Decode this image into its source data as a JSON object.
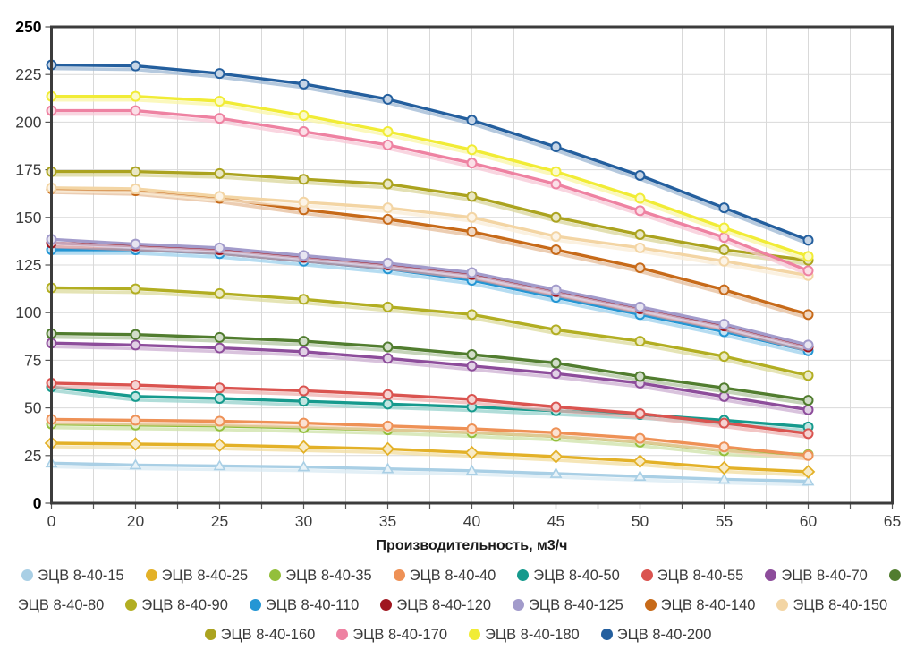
{
  "page": {
    "background": "#ffffff"
  },
  "chart_data": {
    "type": "line",
    "title": "",
    "xlabel": "Производительность, м3/ч",
    "ylabel": "",
    "x_tick_labels": [
      "0",
      "20",
      "25",
      "30",
      "35",
      "40",
      "45",
      "50",
      "55",
      "60",
      "65"
    ],
    "categories": [
      0,
      20,
      25,
      30,
      35,
      40,
      45,
      50,
      55,
      60
    ],
    "y_ticks": [
      0,
      25,
      50,
      75,
      100,
      125,
      150,
      175,
      200,
      225,
      250
    ],
    "ylim": [
      0,
      250
    ],
    "grid": true,
    "legend_position": "bottom",
    "axis_color": "#3c3c3c",
    "grid_color": "#d9d9d9",
    "tick_color": "#555555",
    "tick_label_color": "#3d3d3d",
    "series": [
      {
        "name": "ЭЦВ 8-40-15",
        "color": "#a9cfe5",
        "marker": "triangle",
        "values": [
          21,
          20,
          19.5,
          19,
          18,
          17,
          15.5,
          14,
          12.5,
          11.5
        ]
      },
      {
        "name": "ЭЦВ 8-40-25",
        "color": "#e3b128",
        "marker": "diamond",
        "values": [
          31.5,
          31,
          30.5,
          29.5,
          28.5,
          26.5,
          24.5,
          22,
          18.5,
          16.5
        ]
      },
      {
        "name": "ЭЦВ 8-40-35",
        "color": "#93bf3b",
        "marker": "circle",
        "values": [
          41.5,
          41,
          40.5,
          39.5,
          38.5,
          37,
          35,
          32,
          27.5,
          25.5
        ]
      },
      {
        "name": "ЭЦВ 8-40-40",
        "color": "#ee9156",
        "marker": "circle",
        "values": [
          44,
          43.5,
          43,
          42,
          40.5,
          39,
          37,
          34,
          29.5,
          25
        ]
      },
      {
        "name": "ЭЦВ 8-40-50",
        "color": "#169a8d",
        "marker": "circle",
        "values": [
          61,
          56,
          55,
          53.5,
          52,
          50.5,
          48.5,
          46.5,
          43.5,
          40
        ]
      },
      {
        "name": "ЭЦВ 8-40-55",
        "color": "#da5450",
        "marker": "circle",
        "values": [
          63,
          62,
          60.5,
          59,
          57,
          54.5,
          50.5,
          47,
          42,
          36.5
        ]
      },
      {
        "name": "ЭЦВ 8-40-70",
        "color": "#8d4d9b",
        "marker": "circle",
        "values": [
          84,
          83,
          81.5,
          79.5,
          76,
          72,
          68,
          63,
          56,
          49
        ]
      },
      {
        "name": "ЭЦВ 8-40-80",
        "color": "#517d2f",
        "marker": "circle",
        "values": [
          89,
          88.5,
          87,
          85,
          82,
          78,
          73.5,
          66.5,
          60.5,
          54
        ]
      },
      {
        "name": "ЭЦВ 8-40-90",
        "color": "#b2ae22",
        "marker": "circle",
        "values": [
          113,
          112.5,
          110,
          107,
          103,
          99,
          91,
          85,
          77,
          67
        ]
      },
      {
        "name": "ЭЦВ 8-40-110",
        "color": "#2496d4",
        "marker": "circle",
        "values": [
          133,
          133,
          131,
          127,
          123,
          117,
          108,
          99,
          90,
          80
        ]
      },
      {
        "name": "ЭЦВ 8-40-120",
        "color": "#9f161f",
        "marker": "circle",
        "values": [
          136.5,
          135,
          133,
          129,
          125,
          120,
          111,
          102,
          93,
          82
        ]
      },
      {
        "name": "ЭЦВ 8-40-125",
        "color": "#a29bcb",
        "marker": "circle",
        "values": [
          138.5,
          136,
          134,
          130,
          126,
          121,
          112,
          103,
          94,
          83
        ]
      },
      {
        "name": "ЭЦВ 8-40-140",
        "color": "#c76a19",
        "marker": "circle",
        "values": [
          165,
          164,
          160,
          154,
          149,
          142.5,
          133,
          123.5,
          112,
          99
        ]
      },
      {
        "name": "ЭЦВ 8-40-150",
        "color": "#f3d5a4",
        "marker": "circle",
        "values": [
          165.5,
          165,
          161,
          158,
          155,
          150,
          140,
          134,
          127,
          119.5
        ]
      },
      {
        "name": "ЭЦВ 8-40-160",
        "color": "#aba31f",
        "marker": "circle",
        "values": [
          174,
          174,
          173,
          170,
          167.5,
          161,
          150,
          141,
          133,
          127.5
        ]
      },
      {
        "name": "ЭЦВ 8-40-170",
        "color": "#ee82a2",
        "marker": "circle",
        "values": [
          206,
          206,
          202,
          195,
          188,
          178.5,
          167.5,
          153.5,
          139.5,
          122
        ]
      },
      {
        "name": "ЭЦВ 8-40-180",
        "color": "#f1ec36",
        "marker": "circle",
        "values": [
          213.5,
          213.5,
          211,
          203.5,
          195,
          185.5,
          174,
          160,
          144.5,
          129.5
        ]
      },
      {
        "name": "ЭЦВ 8-40-200",
        "color": "#245f9e",
        "marker": "circle",
        "values": [
          230,
          229.5,
          225.5,
          220,
          212,
          201,
          187,
          172,
          155,
          138
        ]
      }
    ]
  }
}
